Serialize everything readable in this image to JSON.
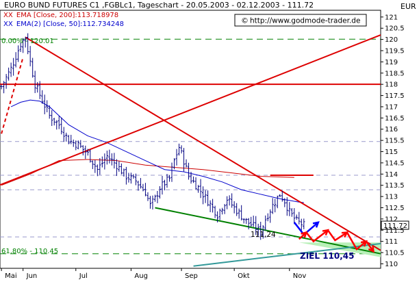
{
  "chart_data": {
    "type": "ohlc",
    "title": "EURO BUND FUTURES C1 ,FGBLc1, Tageschart - 20.05.2003 - 02.12.2003 - 111.72",
    "xlabel": "",
    "ylabel": "",
    "ylim": [
      109.8,
      121.3
    ],
    "ytick_min": 110,
    "ytick_max": 121,
    "ytick_step": 0.5,
    "y_axis_header": "EUR",
    "months": [
      {
        "label": "Mai",
        "day": 0
      },
      {
        "label": "Jun",
        "day": 9
      },
      {
        "label": "Jul",
        "day": 31
      },
      {
        "label": "Aug",
        "day": 54
      },
      {
        "label": "Sep",
        "day": 75
      },
      {
        "label": "Okt",
        "day": 97
      },
      {
        "label": "Nov",
        "day": 120
      }
    ],
    "x_day_range": [
      -0.6,
      158
    ],
    "price_path": [
      [
        0,
        117.9
      ],
      [
        4,
        118.7
      ],
      [
        8,
        119.8
      ],
      [
        10,
        120.1
      ],
      [
        12,
        119.0
      ],
      [
        14,
        118.0
      ],
      [
        17,
        117.3
      ],
      [
        20,
        116.6
      ],
      [
        24,
        116.2
      ],
      [
        28,
        115.5
      ],
      [
        32,
        115.3
      ],
      [
        36,
        114.9
      ],
      [
        40,
        114.2
      ],
      [
        44,
        114.8
      ],
      [
        48,
        114.4
      ],
      [
        52,
        113.9
      ],
      [
        56,
        113.7
      ],
      [
        60,
        113.2
      ],
      [
        62,
        112.6
      ],
      [
        64,
        112.9
      ],
      [
        66,
        113.4
      ],
      [
        70,
        113.8
      ],
      [
        72,
        114.6
      ],
      [
        74,
        115.2
      ],
      [
        76,
        114.6
      ],
      [
        78,
        113.9
      ],
      [
        82,
        113.4
      ],
      [
        86,
        112.8
      ],
      [
        90,
        112.2
      ],
      [
        94,
        112.9
      ],
      [
        97,
        112.5
      ],
      [
        102,
        111.9
      ],
      [
        106,
        111.6
      ],
      [
        108,
        111.4
      ],
      [
        110,
        112.0
      ],
      [
        113,
        112.6
      ],
      [
        116,
        113.1
      ],
      [
        118,
        112.8
      ],
      [
        120,
        112.3
      ],
      [
        123,
        111.9
      ],
      [
        126,
        111.72
      ]
    ],
    "series": [
      {
        "name": "EURO BUND FUTURES C1 ,FGBLc1",
        "color": "#000080"
      },
      {
        "name": "EMA [Close, 200]",
        "value_label": "113.718978",
        "color": "#cc0000",
        "points": [
          [
            0,
            113.5
          ],
          [
            12,
            114.0
          ],
          [
            24,
            114.6
          ],
          [
            36,
            114.65
          ],
          [
            48,
            114.6
          ],
          [
            60,
            114.4
          ],
          [
            72,
            114.3
          ],
          [
            84,
            114.2
          ],
          [
            96,
            114.05
          ],
          [
            108,
            113.9
          ],
          [
            122,
            113.85
          ]
        ]
      },
      {
        "name": "EMA(2) [Close, 50]",
        "value_label": "112.734248",
        "color": "#0000cc",
        "points": [
          [
            4,
            117.0
          ],
          [
            8,
            117.2
          ],
          [
            12,
            117.3
          ],
          [
            16,
            117.25
          ],
          [
            20,
            117.0
          ],
          [
            28,
            116.2
          ],
          [
            36,
            115.7
          ],
          [
            44,
            115.4
          ],
          [
            52,
            115.0
          ],
          [
            60,
            114.6
          ],
          [
            68,
            114.2
          ],
          [
            76,
            114.1
          ],
          [
            84,
            113.9
          ],
          [
            92,
            113.65
          ],
          [
            100,
            113.3
          ],
          [
            108,
            113.1
          ],
          [
            116,
            112.9
          ],
          [
            124,
            112.75
          ],
          [
            126,
            112.73
          ]
        ]
      }
    ],
    "legend": [
      {
        "prefix": "XX",
        "text": "EMA [Close, 200]:113.718978",
        "color": "#cc0000"
      },
      {
        "prefix": "XX",
        "text": "EMA(2) [Close, 50]:112.734248",
        "color": "#0000cc"
      }
    ],
    "website": "http://www.godmode-trader.de",
    "current_price_label": "111.72",
    "current_price": 111.72,
    "fib_levels": [
      {
        "label": "0.00% - 120.01",
        "value": 120.01,
        "color": "#008000"
      },
      {
        "label": "61.80% - 110.45",
        "value": 110.45,
        "color": "#008000"
      }
    ],
    "horizontal_lines": [
      {
        "value": 118.0,
        "color": "#dd0000"
      },
      {
        "value": 115.45,
        "color": "#9999cc"
      },
      {
        "value": 113.95,
        "color": "#9999cc"
      },
      {
        "value": 113.3,
        "color": "#9999cc"
      },
      {
        "value": 111.2,
        "color": "#9999cc"
      }
    ],
    "trendlines": [
      {
        "name": "downtrend-resistance",
        "color": "#dd0000",
        "from": [
          10,
          120.1
        ],
        "to": [
          158,
          110.6
        ]
      },
      {
        "name": "uptrend-support",
        "color": "#dd0000",
        "from": [
          -1,
          113.5
        ],
        "to": [
          158,
          120.2
        ]
      },
      {
        "name": "early-dashed-uptrend",
        "color": "#dd0000",
        "dashed": true,
        "from": [
          0,
          115.8
        ],
        "to": [
          9,
          119.2
        ]
      },
      {
        "name": "ema200-flat-segment",
        "color": "#dd0000",
        "from": [
          112,
          113.95
        ],
        "to": [
          130,
          113.95
        ]
      },
      {
        "name": "lower-support",
        "color": "#008000",
        "from": [
          64,
          112.5
        ],
        "to": [
          158,
          110.45
        ]
      },
      {
        "name": "long-term-support",
        "color": "#339999",
        "from": [
          80,
          109.9
        ],
        "to": [
          158,
          110.9
        ]
      }
    ],
    "low_annotation": {
      "label": "111,24",
      "day": 108,
      "value": 111.24
    },
    "target_label": "ZIEL 110,45",
    "projection_blue": [
      [
        122,
        111.85
      ],
      [
        126,
        111.3
      ],
      [
        132,
        111.85
      ]
    ],
    "projection_red": [
      [
        124,
        111.1
      ],
      [
        127,
        111.4
      ],
      [
        130,
        111.0
      ],
      [
        136,
        111.5
      ],
      [
        139,
        111.05
      ],
      [
        144,
        111.4
      ],
      [
        148,
        110.65
      ],
      [
        152,
        111.0
      ],
      [
        155,
        110.55
      ]
    ],
    "target_triangle": [
      [
        124,
        110.95
      ],
      [
        158,
        110.3
      ],
      [
        158,
        110.95
      ]
    ]
  }
}
